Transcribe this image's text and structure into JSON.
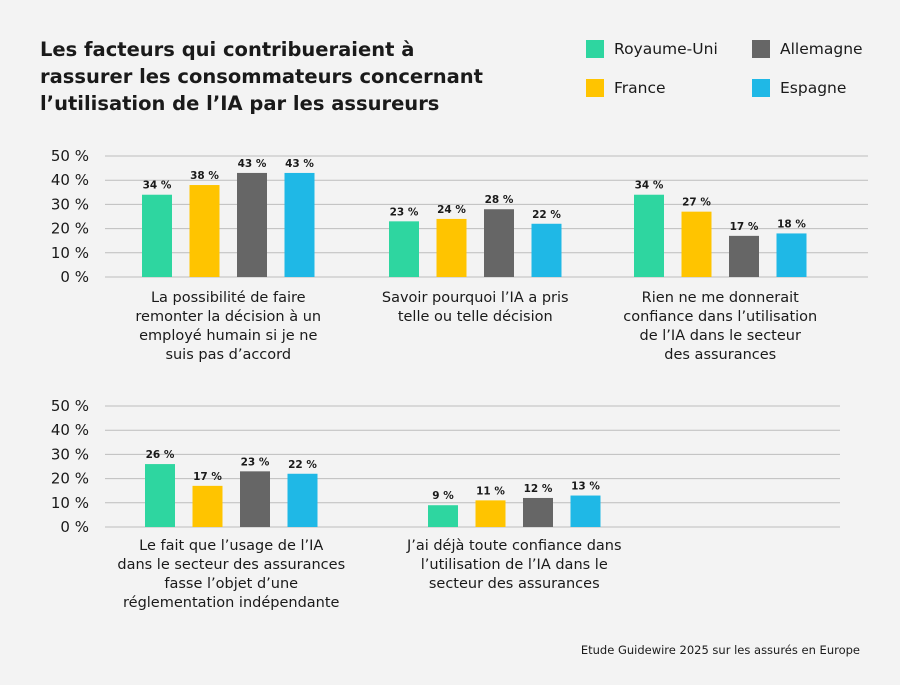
{
  "title": "Les facteurs qui contribueraient à rassurer les consommateurs concernant l’utilisation de l’IA par les assureurs",
  "source": "Etude Guidewire 2025 sur les assurés en Europe",
  "legend": [
    {
      "name": "Royaume-Uni",
      "color": "#2ed6a0"
    },
    {
      "name": "Allemagne",
      "color": "#666666"
    },
    {
      "name": "France",
      "color": "#ffc400"
    },
    {
      "name": "Espagne",
      "color": "#1fb8e6"
    }
  ],
  "chart_data": [
    {
      "type": "bar",
      "ylim": [
        0,
        50
      ],
      "yticks": [
        "0 %",
        "10 %",
        "20 %",
        "30 %",
        "40 %",
        "50 %"
      ],
      "series_names": [
        "Royaume-Uni",
        "France",
        "Allemagne",
        "Espagne"
      ],
      "categories": [
        {
          "label": [
            "La possibilité de faire",
            "remonter la décision à un",
            "employé humain si je ne",
            "suis pas d’accord"
          ],
          "values": [
            34,
            38,
            43,
            43
          ],
          "labels": [
            "34 %",
            "38 %",
            "43 %",
            "43 %"
          ]
        },
        {
          "label": [
            "Savoir pourquoi l’IA a pris",
            "telle ou telle décision"
          ],
          "values": [
            23,
            24,
            28,
            22
          ],
          "labels": [
            "23 %",
            "24 %",
            "28 %",
            "22 %"
          ]
        },
        {
          "label": [
            "Rien ne me donnerait",
            "confiance dans l’utilisation",
            "de l’IA dans le secteur",
            "des assurances"
          ],
          "values": [
            34,
            27,
            17,
            18
          ],
          "labels": [
            "34 %",
            "27 %",
            "17 %",
            "18 %"
          ]
        }
      ]
    },
    {
      "type": "bar",
      "ylim": [
        0,
        50
      ],
      "yticks": [
        "0 %",
        "10 %",
        "20 %",
        "30 %",
        "40 %",
        "50 %"
      ],
      "series_names": [
        "Royaume-Uni",
        "France",
        "Allemagne",
        "Espagne"
      ],
      "categories": [
        {
          "label": [
            "Le fait que l’usage de l’IA",
            "dans le secteur des assurances",
            "fasse l’objet d’une",
            "réglementation indépendante"
          ],
          "values": [
            26,
            17,
            23,
            22
          ],
          "labels": [
            "26 %",
            "17 %",
            "23 %",
            "22 %"
          ]
        },
        {
          "label": [
            "J’ai déjà toute confiance dans",
            "l’utilisation de l’IA dans le",
            "secteur des assurances"
          ],
          "values": [
            9,
            11,
            12,
            13
          ],
          "labels": [
            "9 %",
            "11 %",
            "12 %",
            "13 %"
          ]
        }
      ]
    }
  ],
  "colors": {
    "Royaume-Uni": "#2ed6a0",
    "France": "#ffc400",
    "Allemagne": "#666666",
    "Espagne": "#1fb8e6",
    "grid": "#bdbdbd"
  }
}
